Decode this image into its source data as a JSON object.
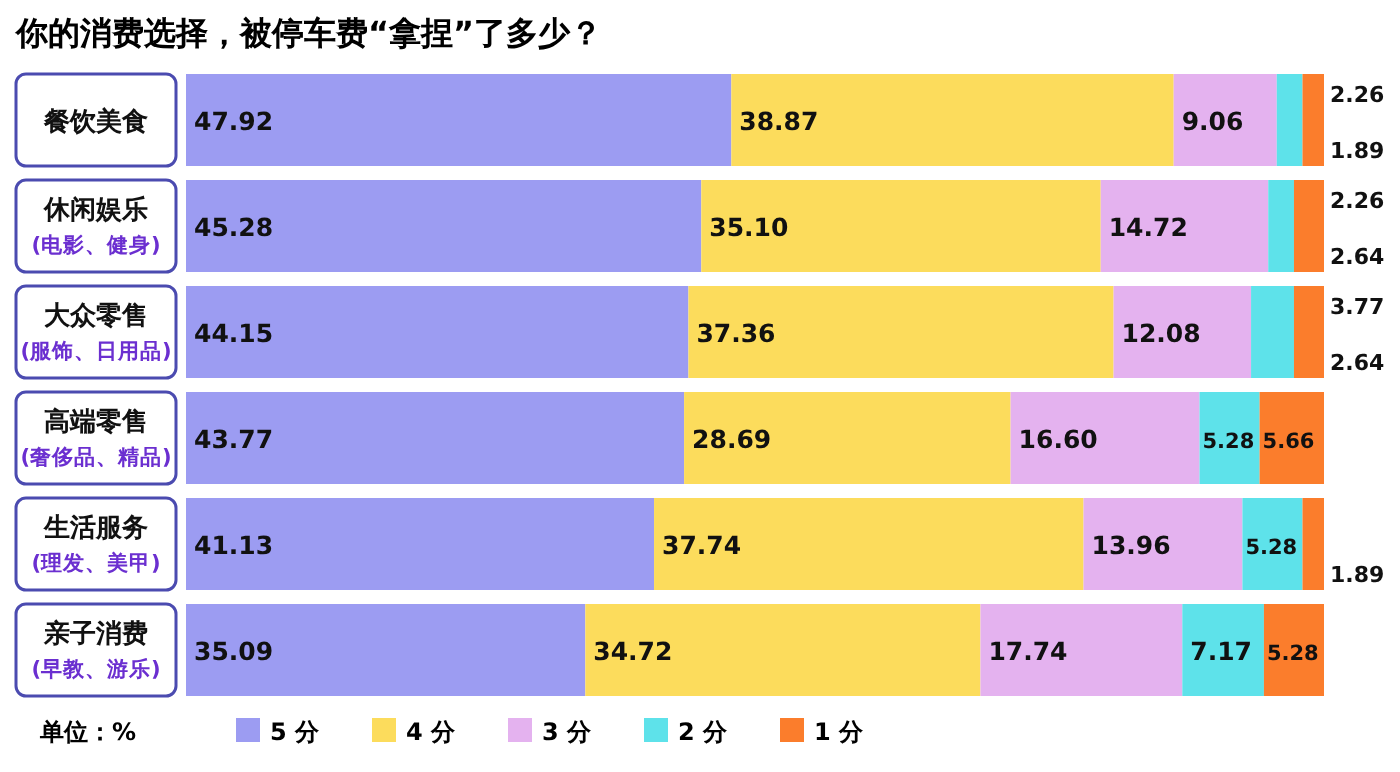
{
  "chart_data": {
    "type": "bar",
    "orientation": "horizontal",
    "stacked": true,
    "title": "你的消费选择，被停车费“拿捏”了多少？",
    "categories": [
      "餐饮美食",
      "休闲娱乐\n(电影、健身)",
      "大众零售\n(服饰、日用品)",
      "高端零售\n(奢侈品、精品)",
      "生活服务\n(理发、美甲)",
      "亲子消费\n(早教、游乐)"
    ],
    "series": [
      {
        "name": "5 分",
        "color": "#9c9cf2",
        "values": [
          47.92,
          45.28,
          44.15,
          43.77,
          41.13,
          35.09
        ],
        "value_labels": [
          "47.92",
          "45.28",
          "44.15",
          "43.77",
          "41.13",
          "35.09"
        ]
      },
      {
        "name": "4 分",
        "color": "#fcdc5c",
        "values": [
          38.87,
          35.1,
          37.36,
          28.69,
          37.74,
          34.72
        ],
        "value_labels": [
          "38.87",
          "35.10",
          "37.36",
          "28.69",
          "37.74",
          "34.72"
        ]
      },
      {
        "name": "3 分",
        "color": "#e4b2ef",
        "values": [
          9.06,
          14.72,
          12.08,
          16.6,
          13.96,
          17.74
        ],
        "value_labels": [
          "9.06",
          "14.72",
          "12.08",
          "16.60",
          "13.96",
          "17.74"
        ]
      },
      {
        "name": "2 分",
        "color": "#5ee2ea",
        "values": [
          2.26,
          2.26,
          3.77,
          5.28,
          5.28,
          7.17
        ],
        "value_labels": [
          "2.26",
          "2.26",
          "3.77",
          "5.28",
          "5.28",
          "7.17"
        ]
      },
      {
        "name": "1 分",
        "color": "#fb7d2c",
        "values": [
          1.89,
          2.64,
          2.64,
          5.66,
          1.89,
          5.28
        ],
        "value_labels": [
          "1.89",
          "2.64",
          "2.64",
          "5.66",
          "1.89",
          "5.28"
        ]
      }
    ],
    "legend": "bottom",
    "annotations": [
      "单位：%"
    ]
  }
}
